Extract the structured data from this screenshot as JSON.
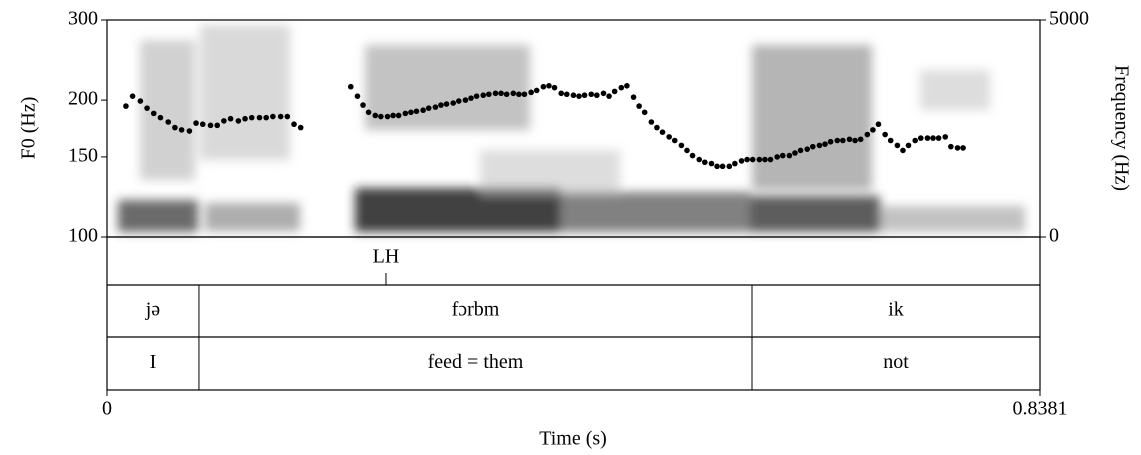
{
  "chart_data": {
    "type": "scatter",
    "ylabel": "F0 (Hz)",
    "y2label": "Frequency (Hz)",
    "xlabel": "Time (s)",
    "xlim": [
      0,
      0.8381
    ],
    "xticks": [
      0,
      0.8381
    ],
    "ylim": [
      100,
      300
    ],
    "yticks": [
      100,
      150,
      200,
      300
    ],
    "log_y": true,
    "y2lim": [
      0,
      5000
    ],
    "y2ticks": [
      0,
      5000
    ],
    "color": "#000000",
    "x": [
      0.017,
      0.023,
      0.03,
      0.036,
      0.042,
      0.048,
      0.055,
      0.061,
      0.067,
      0.074,
      0.08,
      0.086,
      0.093,
      0.099,
      0.105,
      0.111,
      0.118,
      0.124,
      0.13,
      0.137,
      0.143,
      0.149,
      0.156,
      0.162,
      0.168,
      0.174,
      0.219,
      0.225,
      0.23,
      0.235,
      0.241,
      0.246,
      0.252,
      0.257,
      0.262,
      0.268,
      0.273,
      0.278,
      0.284,
      0.289,
      0.295,
      0.3,
      0.305,
      0.311,
      0.316,
      0.322,
      0.327,
      0.332,
      0.338,
      0.343,
      0.349,
      0.354,
      0.359,
      0.365,
      0.37,
      0.375,
      0.381,
      0.386,
      0.392,
      0.397,
      0.402,
      0.408,
      0.413,
      0.419,
      0.424,
      0.429,
      0.435,
      0.44,
      0.446,
      0.451,
      0.456,
      0.462,
      0.467,
      0.473,
      0.478,
      0.483,
      0.489,
      0.494,
      0.499,
      0.505,
      0.51,
      0.516,
      0.521,
      0.526,
      0.532,
      0.537,
      0.543,
      0.548,
      0.553,
      0.559,
      0.564,
      0.57,
      0.575,
      0.58,
      0.586,
      0.591,
      0.596,
      0.602,
      0.607,
      0.613,
      0.618,
      0.623,
      0.629,
      0.634,
      0.64,
      0.645,
      0.65,
      0.656,
      0.661,
      0.667,
      0.672,
      0.677,
      0.683,
      0.688,
      0.693,
      0.699,
      0.704,
      0.71,
      0.715,
      0.72,
      0.726,
      0.731,
      0.737,
      0.742,
      0.747,
      0.753,
      0.758,
      0.764,
      0.769
    ],
    "values": [
      194,
      204,
      199,
      192,
      187,
      183,
      179,
      174,
      172,
      171,
      178,
      177,
      176,
      176,
      180,
      182,
      180,
      182,
      183,
      183,
      183,
      184,
      184,
      184,
      177,
      174,
      214,
      204,
      195,
      188,
      185,
      184,
      184,
      185,
      185,
      187,
      188,
      189,
      190,
      192,
      193,
      195,
      196,
      197,
      199,
      200,
      202,
      204,
      205,
      206,
      207,
      207,
      206,
      207,
      206,
      206,
      208,
      210,
      214,
      215,
      213,
      207,
      206,
      205,
      204,
      205,
      206,
      205,
      207,
      204,
      209,
      213,
      215,
      203,
      194,
      188,
      179,
      174,
      170,
      166,
      163,
      159,
      155,
      151,
      148,
      146,
      145,
      143,
      143,
      143,
      145,
      147,
      148,
      148,
      148,
      148,
      148,
      150,
      151,
      151,
      153,
      155,
      156,
      158,
      159,
      160,
      162,
      163,
      163,
      164,
      163,
      164,
      168,
      172,
      177,
      168,
      163,
      159,
      155,
      159,
      163,
      165,
      165,
      165,
      165,
      166,
      158,
      157,
      157
    ],
    "tiers": [
      {
        "points": [
          {
            "time": 0.2506,
            "label": "LH"
          }
        ]
      },
      {
        "boundaries": [
          0.0826,
          0.5794
        ],
        "labels": [
          "jə",
          "fɔrbm",
          "ik"
        ]
      },
      {
        "boundaries": [
          0.0826,
          0.5794
        ],
        "labels": [
          "I",
          "feed = them",
          "not"
        ]
      }
    ]
  }
}
